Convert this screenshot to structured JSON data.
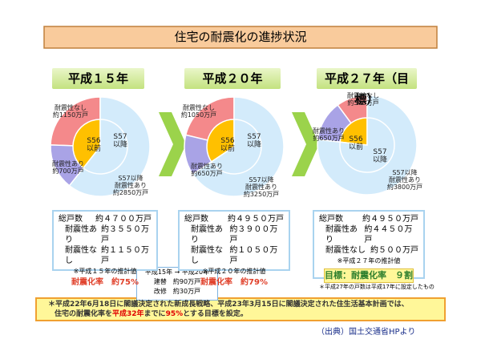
{
  "title": "住宅の耐震化の進捗状況",
  "chart_data": [
    {
      "type": "pie",
      "title": "平成１５年",
      "categories": [
        "耐震性なし",
        "耐震性あり",
        "S57以降\n耐震性あり"
      ],
      "values": [
        1150,
        700,
        2850
      ],
      "value_labels": [
        "約1150万戸",
        "約700万戸",
        "約2850万戸"
      ],
      "colors": [
        "#f4898b",
        "#a9a3e6",
        "#d3ebfb"
      ],
      "inner_labels": [
        "S56\n以前",
        "S57\n以降"
      ],
      "inner_colors": [
        "#ffc000",
        "#d3ebfb"
      ],
      "summary": {
        "rows": [
          [
            "総戸数",
            "約４７００万戸"
          ],
          [
            "耐震性あり",
            "約３５５０万戸"
          ],
          [
            "耐震性なし",
            "約１１５０万戸"
          ]
        ],
        "note": "※平成１５年の推計値",
        "rate": "耐震化率　約75%"
      }
    },
    {
      "type": "pie",
      "title": "平成２０年",
      "categories": [
        "耐震性なし",
        "耐震性あり",
        "S57以降\n耐震性あり"
      ],
      "values": [
        1050,
        650,
        3250
      ],
      "value_labels": [
        "約1050万戸",
        "約650万戸",
        "約3250万戸"
      ],
      "colors": [
        "#f4898b",
        "#a9a3e6",
        "#d3ebfb"
      ],
      "inner_labels": [
        "S56\n以前",
        "S57\n以降"
      ],
      "inner_colors": [
        "#ffc000",
        "#d3ebfb"
      ],
      "summary": {
        "rows": [
          [
            "総戸数",
            "約４９５０万戸"
          ],
          [
            "耐震性あり",
            "約３９００万戸"
          ],
          [
            "耐震性なし",
            "約１０５０万戸"
          ]
        ],
        "note": "※平成２０年の推計値",
        "rate": "耐震化率　約79%"
      }
    },
    {
      "type": "pie",
      "title": "平成２７年（目標）",
      "categories": [
        "耐震性なし",
        "耐震性あり",
        "S57以降\n耐震性あり"
      ],
      "values": [
        500,
        650,
        3800
      ],
      "value_labels": [
        "約500万戸",
        "約650万戸",
        "約3800万戸"
      ],
      "colors": [
        "#f4898b",
        "#a9a3e6",
        "#d3ebfb"
      ],
      "inner_labels": [
        "S56\n以前",
        "S57\n以降"
      ],
      "inner_colors": [
        "#ffc000",
        "#d3ebfb"
      ],
      "summary": {
        "rows": [
          [
            "総戸数",
            "約４９５０万戸"
          ],
          [
            "耐震性あり",
            "約４４５０万戸"
          ],
          [
            "耐震性なし",
            "約５００万戸"
          ]
        ],
        "note": "※平成２７年の推計値",
        "rate": "目標：耐震化率　９割"
      }
    }
  ],
  "transition": {
    "period": "平成15年 → 平成20年",
    "rebuild": "建替　約90万戸",
    "retrofit": "改修　約30万戸"
  },
  "footnote": "＊平成27年の戸数は平成17年に設定したもの",
  "footer_note": {
    "line1": "＊平成22年6月18日に閣議決定された新成長戦略、平成23年3月15日に閣議決定された住生活基本計画では、",
    "line2_parts": [
      "住宅の耐震化率を",
      "平成32年",
      "までに",
      "95%",
      "とする目標を設定。"
    ]
  },
  "source": "（出典）国土交通省HPより"
}
